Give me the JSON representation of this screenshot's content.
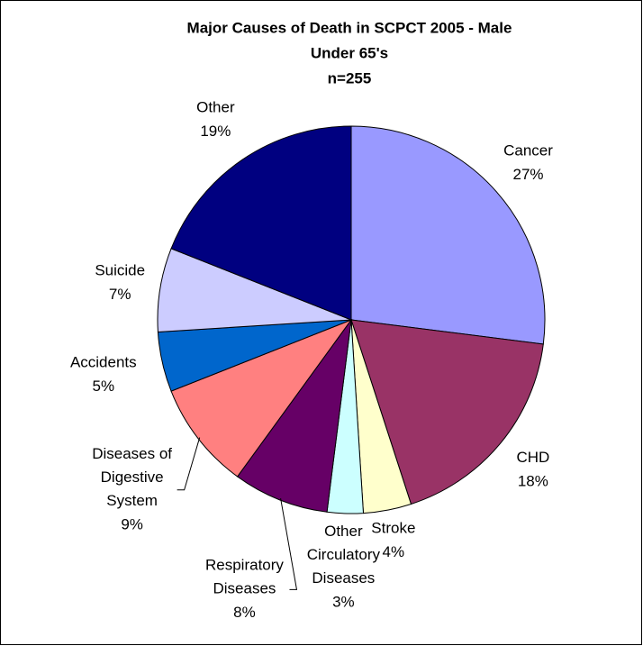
{
  "chart_data": {
    "type": "pie",
    "title": [
      "Major Causes of Death in SCPCT 2005 - Male",
      "Under 65's",
      "n=255"
    ],
    "categories": [
      "Cancer",
      "CHD",
      "Stroke",
      "Other Circulatory Diseases",
      "Respiratory Diseases",
      "Diseases of Digestive System",
      "Accidents",
      "Suicide",
      "Other"
    ],
    "values": [
      27,
      18,
      4,
      3,
      8,
      9,
      5,
      7,
      19
    ],
    "value_labels": [
      "27%",
      "18%",
      "4%",
      "3%",
      "8%",
      "9%",
      "5%",
      "7%",
      "19%"
    ],
    "colors": [
      "#9999ff",
      "#993366",
      "#ffffcc",
      "#ccffff",
      "#660066",
      "#ff8080",
      "#0066cc",
      "#ccccff",
      "#000080"
    ]
  }
}
